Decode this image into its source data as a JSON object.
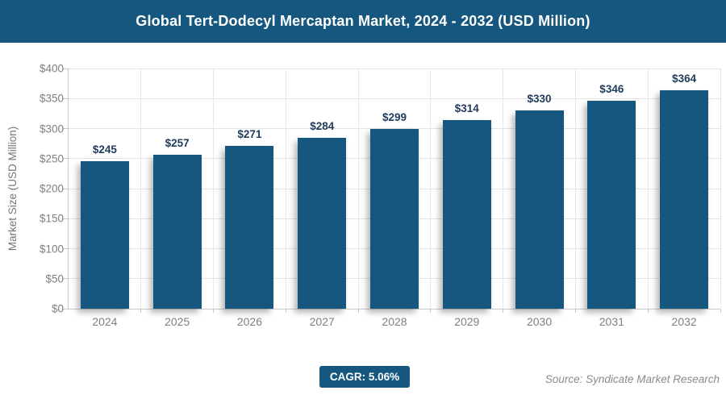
{
  "header": {
    "title": "Global Tert-Dodecyl Mercaptan Market, 2024 - 2032 (USD Million)"
  },
  "chart_data": {
    "type": "bar",
    "title": "Global Tert-Dodecyl Mercaptan Market, 2024 - 2032 (USD Million)",
    "categories": [
      "2024",
      "2025",
      "2026",
      "2027",
      "2028",
      "2029",
      "2030",
      "2031",
      "2032"
    ],
    "values": [
      245,
      257,
      271,
      284,
      299,
      314,
      330,
      346,
      364
    ],
    "value_labels": [
      "$245",
      "$257",
      "$271",
      "$284",
      "$299",
      "$314",
      "$330",
      "$346",
      "$364"
    ],
    "xlabel": "",
    "ylabel": "Market Size (USD Million)",
    "ylim": [
      0,
      400
    ],
    "ytick_step": 50,
    "ytick_labels": [
      "$0",
      "$50",
      "$100",
      "$150",
      "$200",
      "$250",
      "$300",
      "$350",
      "$400"
    ],
    "grid": true,
    "legend": false
  },
  "footer": {
    "cagr_label": "CAGR: 5.06%",
    "source": "Source: Syndicate Market Research"
  },
  "colors": {
    "header_bg": "#15577F",
    "bar": "#15577E",
    "value_label": "#1F3B5C",
    "axis_text": "#7F7F7F",
    "gridline": "#E3E3E3",
    "axis_line": "#C9C9C9",
    "badge_bg": "#15577F",
    "source_text": "#8A8A8A"
  }
}
